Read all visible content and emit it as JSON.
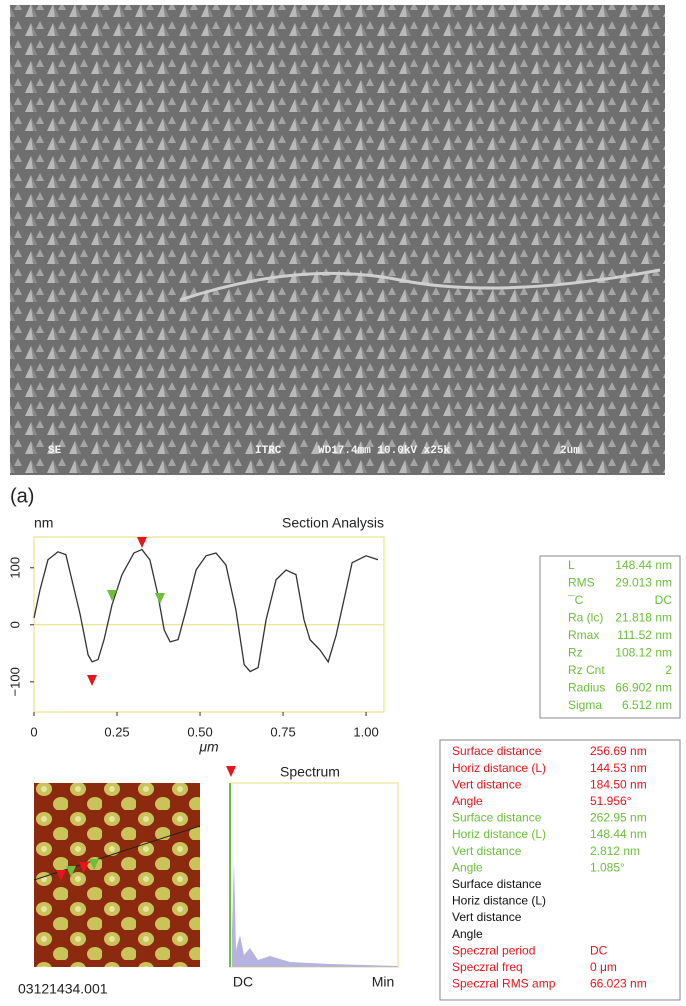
{
  "sem": {
    "labels": [
      "SE",
      "ITRC",
      "WD17.4mm 10.0kV x25k",
      "2um"
    ]
  },
  "panel_label": "(a)",
  "chart_data": {
    "type": "line",
    "title": "Section Analysis",
    "y_label": "nm",
    "x_label": "μm",
    "x": [
      0,
      0.018,
      0.042,
      0.072,
      0.096,
      0.114,
      0.139,
      0.163,
      0.175,
      0.193,
      0.211,
      0.235,
      0.265,
      0.301,
      0.325,
      0.349,
      0.373,
      0.392,
      0.41,
      0.434,
      0.458,
      0.488,
      0.518,
      0.548,
      0.578,
      0.608,
      0.633,
      0.651,
      0.675,
      0.699,
      0.729,
      0.759,
      0.789,
      0.813,
      0.831,
      0.861,
      0.886,
      0.91,
      0.94,
      0.958,
      1.0,
      1.036
    ],
    "series": [
      {
        "color": "#333333",
        "values": [
          12,
          61,
          114,
          128,
          123,
          79,
          18,
          -53,
          -65,
          -61,
          -26,
          35,
          88,
          126,
          132,
          114,
          53,
          -9,
          -30,
          -26,
          26,
          96,
          121,
          126,
          105,
          26,
          -70,
          -82,
          -75,
          9,
          79,
          96,
          88,
          9,
          -26,
          -44,
          -65,
          -18,
          61,
          109,
          121,
          114
        ]
      }
    ],
    "xlim": [
      0,
      1.054
    ],
    "ylim": [
      -153,
      154
    ],
    "xticks": [
      0,
      0.25,
      {
        "value": 0.5,
        "label": "0.50"
      },
      0.75,
      {
        "value": 1,
        "label": "1.00"
      }
    ],
    "yticks": [
      100,
      0,
      {
        "value": -100,
        "label": "−100"
      }
    ]
  },
  "stats": [
    [
      "L",
      "148.44 nm"
    ],
    [
      "RMS",
      "29.013 nm"
    ],
    [
      "¯C",
      "DC"
    ],
    [
      "Ra (lc)",
      "21.818 nm"
    ],
    [
      "Rmax",
      "111.52 nm"
    ],
    [
      "Rz",
      "108.12 nm"
    ],
    [
      "Rz Cnt",
      "2"
    ],
    [
      "Radius",
      "66.902 nm"
    ],
    [
      "Sigma",
      "6.512 nm"
    ]
  ],
  "spectrum": {
    "title": "Spectrum",
    "left": "DC",
    "right": "Min"
  },
  "measurements": [
    {
      "color": "#e8141b",
      "rows": [
        [
          "Surface distance",
          "256.69 nm"
        ],
        [
          "Horiz distance (L)",
          "144.53 nm"
        ],
        [
          "Vert distance",
          "184.50 nm"
        ],
        [
          "Angle",
          "51.956°"
        ]
      ]
    },
    {
      "color": "#6bbf3a",
      "rows": [
        [
          "Surface distance",
          "262.95 nm"
        ],
        [
          "Horiz distance (L)",
          "148.44 nm"
        ],
        [
          "Vert distance",
          "2.812 nm"
        ],
        [
          "Angle",
          "1.085°"
        ]
      ]
    },
    {
      "color": "#111111",
      "rows": [
        [
          "Surface distance"
        ],
        [
          "Horiz distance (L)"
        ],
        [
          "Vert distance"
        ],
        [
          "Angle"
        ]
      ]
    },
    {
      "color": "#e8141b",
      "rows": [
        [
          "Speczral period",
          "DC"
        ],
        [
          "Speczral freq",
          "0 μm"
        ],
        [
          "Speczral RMS amp",
          "66.023 nm"
        ]
      ]
    }
  ],
  "file_id": "03121434.001"
}
